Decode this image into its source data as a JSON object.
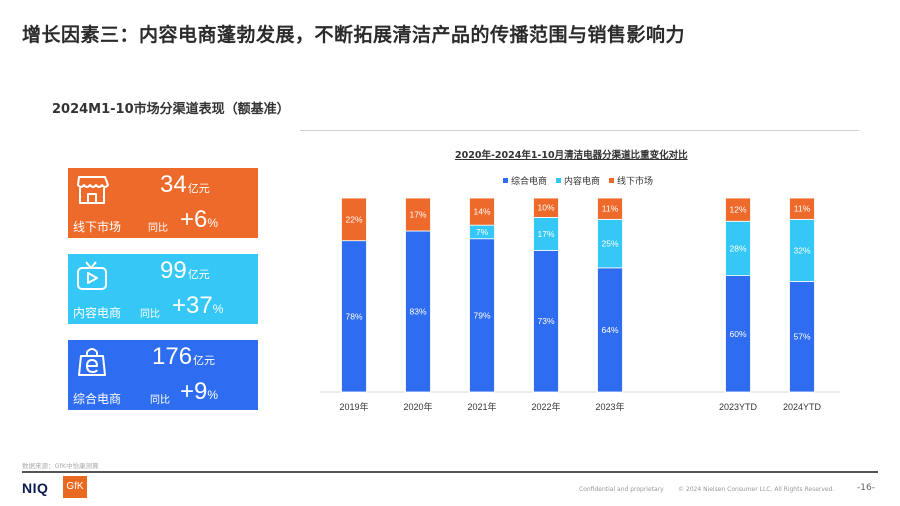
{
  "title": "增长因素三：内容电商蓬勃发展，不断拓展清洁产品的传播范围与销售影响力",
  "subtitle": "2024M1-10市场分渠道表现（额基准）",
  "kpis": [
    {
      "name": "线下市场",
      "value": "34",
      "unit": "亿元",
      "yoy_label": "同比",
      "yoy_value": "+6",
      "yoy_unit": "%",
      "color": "#ee6a2b",
      "icon": "store-icon"
    },
    {
      "name": "内容电商",
      "value": "99",
      "unit": "亿元",
      "yoy_label": "同比",
      "yoy_value": "+37",
      "yoy_unit": "%",
      "color": "#35c8f7",
      "icon": "tv-play-icon"
    },
    {
      "name": "综合电商",
      "value": "176",
      "unit": "亿元",
      "yoy_label": "同比",
      "yoy_value": "+9",
      "yoy_unit": "%",
      "color": "#2e6cf0",
      "icon": "shopping-bag-e-icon"
    }
  ],
  "chart_data": {
    "type": "bar",
    "stacked": true,
    "title": "2020年-2024年1-10月清洁电器分渠道比重变化对比",
    "categories": [
      "2019年",
      "2020年",
      "2021年",
      "2022年",
      "2023年",
      "2023YTD",
      "2024YTD"
    ],
    "series": [
      {
        "name": "综合电商",
        "color": "#2e6cf0",
        "values": [
          78,
          83,
          79,
          73,
          64,
          60,
          57
        ]
      },
      {
        "name": "内容电商",
        "color": "#35c8f7",
        "values": [
          0,
          0,
          7,
          17,
          25,
          28,
          32
        ]
      },
      {
        "name": "线下市场",
        "color": "#ee6a2b",
        "values": [
          22,
          17,
          14,
          10,
          11,
          12,
          11
        ]
      }
    ],
    "unit": "%",
    "ylim": [
      0,
      100
    ],
    "legend": "top-center",
    "grid": false
  },
  "footer": {
    "source": "数据来源：GfK中怡康测算",
    "brand_niq": "NIQ",
    "brand_gfk": "GfK",
    "confidential": "Confidential and proprietary",
    "copyright": "© 2024 Nielsen Consumer LLC. All Rights Reserved.",
    "page": "-16-"
  }
}
